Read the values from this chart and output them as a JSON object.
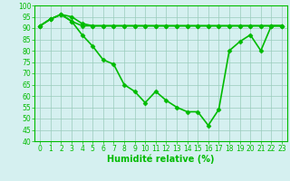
{
  "x": [
    0,
    1,
    2,
    3,
    4,
    5,
    6,
    7,
    8,
    9,
    10,
    11,
    12,
    13,
    14,
    15,
    16,
    17,
    18,
    19,
    20,
    21,
    22,
    23
  ],
  "y_top": [
    91,
    94,
    96,
    95,
    92,
    91,
    91,
    91,
    91,
    91,
    91,
    91,
    91,
    91,
    91,
    91,
    91,
    91,
    91,
    91,
    91,
    91,
    91,
    91
  ],
  "y_mid": [
    91,
    94,
    96,
    93,
    91,
    91,
    91,
    91,
    91,
    91,
    91,
    91,
    91,
    91,
    91,
    91,
    91,
    91,
    91,
    91,
    91,
    91,
    91,
    91
  ],
  "y_bot": [
    91,
    94,
    96,
    93,
    87,
    82,
    76,
    74,
    65,
    62,
    57,
    62,
    58,
    55,
    53,
    53,
    47,
    54,
    80,
    84,
    87,
    80,
    91,
    91
  ],
  "line_color": "#00bb00",
  "bg_color": "#d5f0f0",
  "grid_color": "#99ccbb",
  "xlabel": "Humidité relative (%)",
  "ylim": [
    40,
    100
  ],
  "xlim_min": -0.5,
  "xlim_max": 23.5,
  "yticks": [
    40,
    45,
    50,
    55,
    60,
    65,
    70,
    75,
    80,
    85,
    90,
    95,
    100
  ],
  "xticks": [
    0,
    1,
    2,
    3,
    4,
    5,
    6,
    7,
    8,
    9,
    10,
    11,
    12,
    13,
    14,
    15,
    16,
    17,
    18,
    19,
    20,
    21,
    22,
    23
  ],
  "xlabel_fontsize": 7,
  "tick_fontsize": 5.5,
  "line_width": 1.2,
  "marker_size": 2.5
}
